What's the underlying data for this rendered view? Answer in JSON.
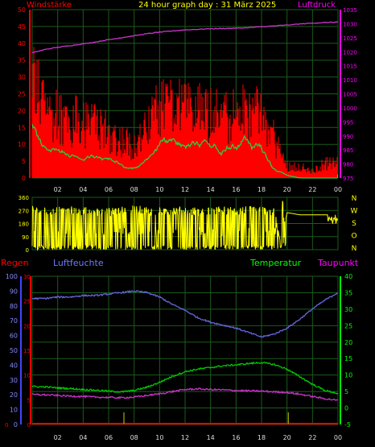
{
  "header": {
    "left_label": "Windstärke",
    "title": "24 hour graph day : 31 März 2025",
    "right_label": "Luftdruck"
  },
  "bottom_header": {
    "regen": "Regen",
    "luftfeuchte": "Luftfeuchte",
    "temperatur": "Temperatur",
    "taupunkt": "Taupunkt"
  },
  "colors": {
    "wind": "#ff0000",
    "gust": "#ff0000",
    "wind_avg": "#2ecc40",
    "gust_avg": "#ff4a1a",
    "pressure": "#cc33cc",
    "calm": "#c8e8c8",
    "direction": "#ffff00",
    "humidity": "#6666dd",
    "temperature": "#00cc00",
    "dewpoint": "#cc33cc",
    "rain": "#ff0000",
    "rain_ticks": "#cccc00",
    "grid": "#1a5c1a"
  },
  "chart_data": [
    {
      "type": "bar",
      "panel": "wind",
      "xticks": [
        "02",
        "04",
        "06",
        "08",
        "10",
        "12",
        "14",
        "16",
        "18",
        "20",
        "22",
        "00"
      ],
      "left_axis": {
        "label": "Windstärke",
        "ylim": [
          0,
          50
        ],
        "ticks": [
          0,
          5,
          10,
          15,
          20,
          25,
          30,
          35,
          40,
          45,
          50
        ]
      },
      "right_axis": {
        "label": "Luftdruck",
        "ylim": [
          975,
          1035
        ],
        "ticks": [
          975,
          980,
          985,
          990,
          995,
          1000,
          1005,
          1010,
          1015,
          1020,
          1025,
          1030,
          1035
        ]
      },
      "series": [
        {
          "name": "Windstärke",
          "x": [
            0,
            1,
            2,
            3,
            4,
            5,
            6,
            7,
            8,
            9,
            10,
            11,
            12,
            13,
            14,
            15,
            16,
            17,
            18,
            19,
            20,
            21,
            22,
            23
          ],
          "values": [
            17,
            11,
            9,
            8,
            7,
            8,
            6,
            5,
            3,
            6,
            13,
            13,
            10,
            12,
            12,
            11,
            12,
            13,
            10,
            3,
            1,
            0,
            0,
            0
          ]
        },
        {
          "name": "Böen",
          "x": [
            0,
            1,
            2,
            3,
            4,
            5,
            6,
            7,
            8,
            9,
            10,
            11,
            12,
            13,
            14,
            15,
            16,
            17,
            18,
            19,
            20,
            21,
            22,
            23
          ],
          "values": [
            34,
            24,
            22,
            20,
            18,
            18,
            15,
            13,
            11,
            16,
            24,
            24,
            22,
            22,
            23,
            21,
            22,
            23,
            20,
            14,
            4,
            4,
            2,
            5
          ]
        },
        {
          "name": "Luftdruck",
          "x": [
            0,
            1,
            2,
            3,
            4,
            5,
            6,
            7,
            8,
            9,
            10,
            11,
            12,
            13,
            14,
            15,
            16,
            17,
            18,
            19,
            20,
            21,
            22,
            23,
            24
          ],
          "values": [
            1019.6,
            1020.8,
            1021.6,
            1022.2,
            1022.8,
            1023.5,
            1024.3,
            1025.0,
            1025.7,
            1026.4,
            1027.0,
            1027.4,
            1027.8,
            1028.0,
            1028.2,
            1028.3,
            1028.4,
            1028.6,
            1028.9,
            1029.2,
            1029.5,
            1029.9,
            1030.2,
            1030.4,
            1030.6
          ]
        }
      ]
    },
    {
      "type": "line",
      "panel": "direction",
      "yticks": [
        0,
        90,
        180,
        270,
        360
      ],
      "ylim": [
        0,
        360
      ],
      "compass": [
        "N",
        "W",
        "S",
        "O",
        "N"
      ],
      "series": [
        {
          "name": "Windrichtung",
          "x": [
            0,
            1,
            2,
            3,
            4,
            5,
            6,
            7,
            8,
            9,
            10,
            11,
            12,
            13,
            14,
            15,
            16,
            17,
            18,
            19,
            19.5,
            20,
            21,
            22,
            23,
            24
          ],
          "values": [
            270,
            262,
            268,
            270,
            265,
            260,
            258,
            270,
            275,
            268,
            262,
            270,
            265,
            262,
            270,
            268,
            265,
            270,
            268,
            262,
            15,
            255,
            240,
            240,
            240,
            240
          ]
        }
      ]
    },
    {
      "type": "line",
      "panel": "climate",
      "xticks": [
        "02",
        "04",
        "06",
        "08",
        "10",
        "12",
        "14",
        "16",
        "18",
        "20",
        "22",
        "00"
      ],
      "axes": {
        "regen": {
          "label": "Regen",
          "ticks": [
            0
          ]
        },
        "luftfeuchte": {
          "label": "Luftfeuchte",
          "ylim": [
            0,
            100
          ],
          "ticks": [
            0,
            10,
            20,
            30,
            40,
            50,
            60,
            70,
            80,
            90,
            100
          ]
        },
        "mm": {
          "ylim": [
            0,
            30
          ],
          "ticks": [
            0,
            5,
            10,
            15,
            20,
            25,
            30
          ]
        },
        "temperatur": {
          "label": "Temperatur",
          "ylim": [
            -5,
            40
          ],
          "ticks": [
            -5,
            0,
            5,
            10,
            15,
            20,
            25,
            30,
            35,
            40
          ]
        }
      },
      "series": [
        {
          "name": "Luftfeuchte",
          "x": [
            0,
            1,
            2,
            3,
            4,
            5,
            6,
            7,
            8,
            9,
            10,
            11,
            12,
            13,
            14,
            15,
            16,
            17,
            18,
            19,
            20,
            21,
            22,
            23,
            24
          ],
          "values": [
            85,
            85,
            86,
            86,
            87,
            87,
            88,
            89,
            90,
            89,
            86,
            81,
            77,
            72,
            69,
            67,
            65,
            62,
            59,
            61,
            65,
            71,
            78,
            84,
            89
          ]
        },
        {
          "name": "Temperatur",
          "x": [
            0,
            1,
            2,
            3,
            4,
            5,
            6,
            7,
            8,
            9,
            10,
            11,
            12,
            13,
            14,
            15,
            16,
            17,
            18,
            19,
            20,
            21,
            22,
            23,
            24
          ],
          "values": [
            6.5,
            6.4,
            6.1,
            5.9,
            5.6,
            5.4,
            5.1,
            4.9,
            5.3,
            6.3,
            7.8,
            9.6,
            11.0,
            11.8,
            12.3,
            12.8,
            13.1,
            13.5,
            13.8,
            13.2,
            11.8,
            9.5,
            7.2,
            5.3,
            4.4
          ]
        },
        {
          "name": "Taupunkt",
          "x": [
            0,
            1,
            2,
            3,
            4,
            5,
            6,
            7,
            8,
            9,
            10,
            11,
            12,
            13,
            14,
            15,
            16,
            17,
            18,
            19,
            20,
            21,
            22,
            23,
            24
          ],
          "values": [
            4.1,
            4.0,
            3.8,
            3.6,
            3.5,
            3.3,
            3.2,
            3.1,
            3.3,
            3.8,
            4.3,
            5.0,
            5.6,
            5.8,
            5.6,
            5.5,
            5.3,
            5.2,
            5.1,
            4.9,
            4.7,
            4.2,
            3.5,
            2.8,
            2.3
          ]
        },
        {
          "name": "Regen",
          "x": [
            0,
            24
          ],
          "values": [
            0,
            0
          ]
        }
      ],
      "rain_markers": [
        7.2,
        20.1
      ]
    }
  ]
}
